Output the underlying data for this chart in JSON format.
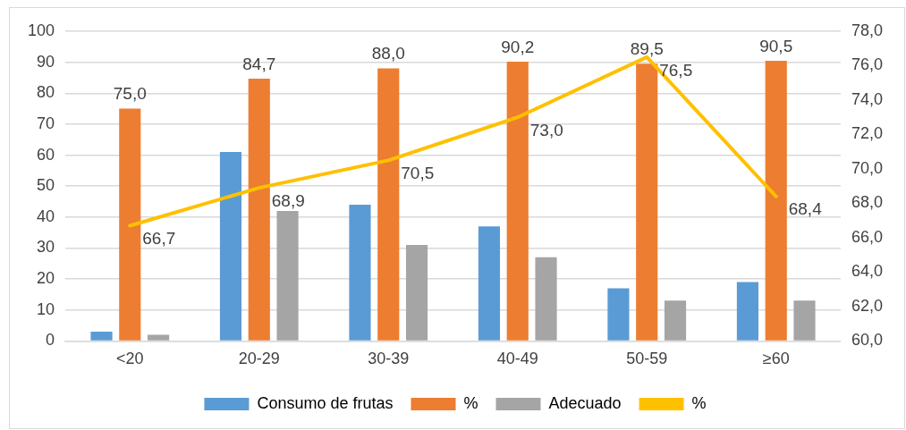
{
  "chart_data": {
    "type": "bar",
    "categories": [
      "<20",
      "20-29",
      "30-39",
      "40-49",
      "50-59",
      "≥60"
    ],
    "series": [
      {
        "name": "Consumo de frutas",
        "color": "#5b9bd5",
        "values": [
          3,
          61,
          44,
          37,
          17,
          19
        ]
      },
      {
        "name": "%",
        "color": "#ed7d31",
        "values": [
          75.0,
          84.7,
          88.0,
          90.2,
          89.5,
          90.5
        ],
        "value_labels": [
          "75,0",
          "84,7",
          "88,0",
          "90,2",
          "89,5",
          "90,5"
        ]
      },
      {
        "name": "Adecuado",
        "color": "#a5a5a5",
        "values": [
          2,
          42,
          31,
          27,
          13,
          13
        ]
      },
      {
        "name": "%",
        "type": "line",
        "axis": "y2",
        "color": "#ffc000",
        "values": [
          66.7,
          68.9,
          70.5,
          73.0,
          76.5,
          68.4
        ],
        "value_labels": [
          "66,7",
          "68,9",
          "70,5",
          "73,0",
          "76,5",
          "68,4"
        ]
      }
    ],
    "ylim": [
      0,
      100
    ],
    "yticks": [
      0,
      10,
      20,
      30,
      40,
      50,
      60,
      70,
      80,
      90,
      100
    ],
    "y2lim": [
      60,
      78
    ],
    "y2ticks": [
      {
        "value": 60,
        "label": "60,0"
      },
      {
        "value": 62,
        "label": "62,0"
      },
      {
        "value": 64,
        "label": "64,0"
      },
      {
        "value": 66,
        "label": "66,0"
      },
      {
        "value": 68,
        "label": "68,0"
      },
      {
        "value": 70,
        "label": "70,0"
      },
      {
        "value": 72,
        "label": "72,0"
      },
      {
        "value": 74,
        "label": "74,0"
      },
      {
        "value": 76,
        "label": "76,0"
      },
      {
        "value": 78,
        "label": "78,0"
      }
    ],
    "grid": "y",
    "legend": "bottom",
    "marker": "none",
    "line_style": "solid"
  }
}
